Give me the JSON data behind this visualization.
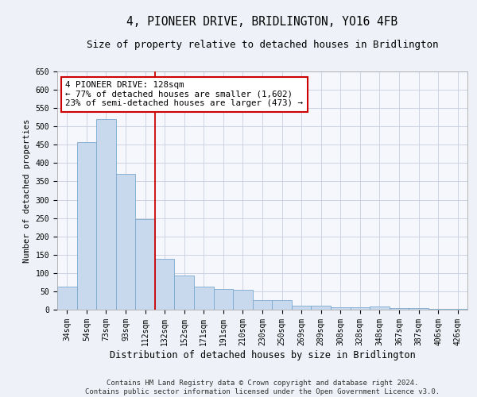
{
  "title": "4, PIONEER DRIVE, BRIDLINGTON, YO16 4FB",
  "subtitle": "Size of property relative to detached houses in Bridlington",
  "xlabel": "Distribution of detached houses by size in Bridlington",
  "ylabel": "Number of detached properties",
  "categories": [
    "34sqm",
    "54sqm",
    "73sqm",
    "93sqm",
    "112sqm",
    "132sqm",
    "152sqm",
    "171sqm",
    "191sqm",
    "210sqm",
    "230sqm",
    "250sqm",
    "269sqm",
    "289sqm",
    "308sqm",
    "328sqm",
    "348sqm",
    "367sqm",
    "387sqm",
    "406sqm",
    "426sqm"
  ],
  "values": [
    62,
    458,
    520,
    370,
    248,
    138,
    93,
    62,
    57,
    55,
    26,
    26,
    10,
    11,
    6,
    6,
    8,
    4,
    4,
    3,
    3
  ],
  "bar_color": "#c8d9ee",
  "bar_edge_color": "#7aaad0",
  "vline_color": "#cc0000",
  "annotation_text": "4 PIONEER DRIVE: 128sqm\n← 77% of detached houses are smaller (1,602)\n23% of semi-detached houses are larger (473) →",
  "annotation_box_color": "#ffffff",
  "annotation_box_edge_color": "#cc0000",
  "ylim": [
    0,
    650
  ],
  "yticks": [
    0,
    50,
    100,
    150,
    200,
    250,
    300,
    350,
    400,
    450,
    500,
    550,
    600,
    650
  ],
  "footer": "Contains HM Land Registry data © Crown copyright and database right 2024.\nContains public sector information licensed under the Open Government Licence v3.0.",
  "bg_color": "#eef2f8",
  "plot_bg_color": "#f5f7fc",
  "grid_color": "#c8cede",
  "title_fontsize": 10.5,
  "subtitle_fontsize": 9,
  "xlabel_fontsize": 8.5,
  "ylabel_fontsize": 7.5,
  "tick_fontsize": 7,
  "footer_fontsize": 6.5,
  "annot_fontsize": 7.8
}
